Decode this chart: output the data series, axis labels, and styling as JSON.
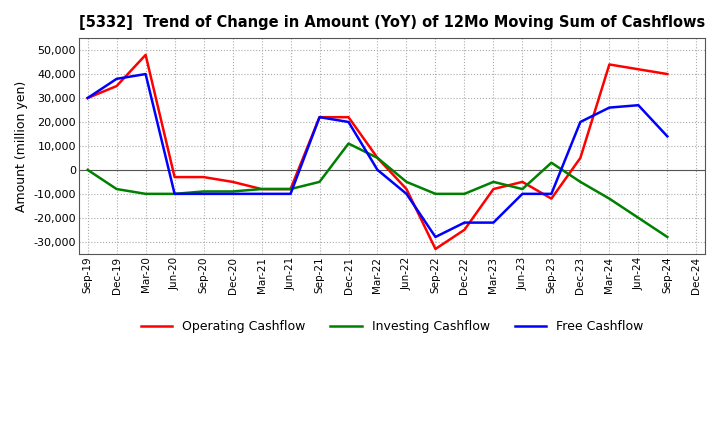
{
  "title": "[5332]  Trend of Change in Amount (YoY) of 12Mo Moving Sum of Cashflows",
  "ylabel": "Amount (million yen)",
  "x_labels": [
    "Sep-19",
    "Dec-19",
    "Mar-20",
    "Jun-20",
    "Sep-20",
    "Dec-20",
    "Mar-21",
    "Jun-21",
    "Sep-21",
    "Dec-21",
    "Mar-22",
    "Jun-22",
    "Sep-22",
    "Dec-22",
    "Mar-23",
    "Jun-23",
    "Sep-23",
    "Dec-23",
    "Mar-24",
    "Jun-24",
    "Sep-24",
    "Dec-24"
  ],
  "operating": [
    30000,
    35000,
    48000,
    -3000,
    -3000,
    -5000,
    -8000,
    -8000,
    22000,
    22000,
    5000,
    -8000,
    -33000,
    -25000,
    -8000,
    -5000,
    -12000,
    5000,
    44000,
    42000,
    40000,
    null
  ],
  "investing": [
    0,
    -8000,
    -10000,
    -10000,
    -9000,
    -9000,
    -8000,
    -8000,
    -5000,
    11000,
    5000,
    -5000,
    -10000,
    -10000,
    -5000,
    -8000,
    3000,
    -5000,
    -12000,
    -20000,
    -28000,
    null
  ],
  "free": [
    30000,
    38000,
    40000,
    -10000,
    -10000,
    -10000,
    -10000,
    -10000,
    22000,
    20000,
    0,
    -10000,
    -28000,
    -22000,
    -22000,
    -10000,
    -10000,
    20000,
    26000,
    27000,
    14000,
    null
  ],
  "ylim": [
    -35000,
    55000
  ],
  "yticks": [
    -30000,
    -20000,
    -10000,
    0,
    10000,
    20000,
    30000,
    40000,
    50000
  ],
  "colors": {
    "operating": "#FF0000",
    "investing": "#008000",
    "free": "#0000FF"
  },
  "legend_labels": [
    "Operating Cashflow",
    "Investing Cashflow",
    "Free Cashflow"
  ],
  "grid_color": "#AAAAAA",
  "background_color": "#FFFFFF"
}
